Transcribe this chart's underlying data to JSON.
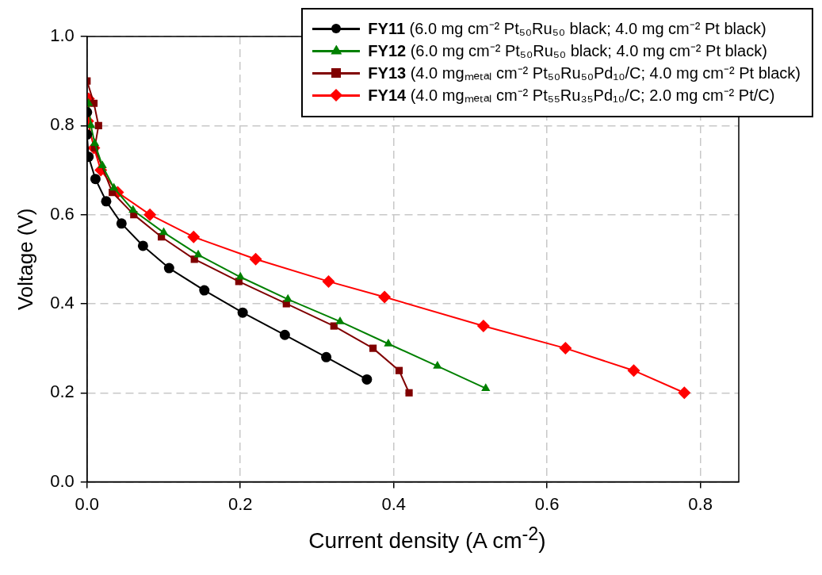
{
  "chart_data": {
    "type": "line",
    "xlabel": "Current density (A cm$^{-2}$)",
    "ylabel": "Voltage (V)",
    "xlim": [
      0,
      0.85
    ],
    "ylim": [
      0,
      1
    ],
    "xticks": [
      {
        "value": 0,
        "label": "0.0"
      },
      0.2,
      0.4,
      0.6,
      0.8
    ],
    "yticks": [
      {
        "value": 0,
        "label": "0.0"
      },
      0.2,
      0.4,
      0.6,
      0.8,
      {
        "value": 1,
        "label": "1.0"
      }
    ],
    "grid": true,
    "legend": "top right",
    "line_style": "solid",
    "series": [
      {
        "name": "FY11 (6.0 mg cm⁻² Pt₅₀Ru₅₀ black; 4.0 mg cm⁻² Pt black)",
        "color": "#000000",
        "marker": "circle",
        "x": [
          0,
          0,
          0.002,
          0.011,
          0.025,
          0.045,
          0.073,
          0.107,
          0.153,
          0.203,
          0.258,
          0.312,
          0.365
        ],
        "values": [
          0.83,
          0.78,
          0.73,
          0.68,
          0.63,
          0.58,
          0.53,
          0.48,
          0.43,
          0.38,
          0.33,
          0.28,
          0.23
        ]
      },
      {
        "name": "FY12 (6.0 mg cm⁻² Pt₅₀Ru₅₀ black; 4.0 mg cm⁻² Pt black)",
        "color": "#008000",
        "marker": "triangle",
        "x": [
          0.002,
          0.005,
          0.01,
          0.02,
          0.035,
          0.06,
          0.1,
          0.145,
          0.2,
          0.262,
          0.33,
          0.393,
          0.457,
          0.52
        ],
        "values": [
          0.85,
          0.8,
          0.76,
          0.71,
          0.66,
          0.61,
          0.56,
          0.51,
          0.46,
          0.41,
          0.36,
          0.31,
          0.26,
          0.21
        ]
      },
      {
        "name": "FY13 (4.0 mgₘₑₜₐₗ cm⁻² Pt₅₀Ru₅₀Pd₁₀/C; 4.0 mg cm⁻² Pt black)",
        "color": "#800000",
        "marker": "square",
        "x": [
          0,
          0.009,
          0.015,
          0.01,
          0.033,
          0.061,
          0.097,
          0.14,
          0.198,
          0.26,
          0.322,
          0.373,
          0.407,
          0.42
        ],
        "values": [
          0.9,
          0.85,
          0.8,
          0.75,
          0.65,
          0.6,
          0.55,
          0.5,
          0.45,
          0.4,
          0.35,
          0.3,
          0.25,
          0.2
        ]
      },
      {
        "name": "FY14 (4.0 mgₘₑₜₐₗ cm⁻² Pt₅₅Ru₃₅Pd₁₀/C; 2.0 mg cm⁻² Pt/C)",
        "color": "#ff0000",
        "marker": "diamond",
        "x": [
          0.002,
          0,
          0.001,
          0.009,
          0.018,
          0.04,
          0.082,
          0.139,
          0.22,
          0.315,
          0.388,
          0.517,
          0.624,
          0.713,
          0.779
        ],
        "values": [
          0.86,
          0.85,
          0.81,
          0.75,
          0.7,
          0.65,
          0.6,
          0.55,
          0.5,
          0.45,
          0.415,
          0.35,
          0.3,
          0.25,
          0.2
        ]
      }
    ]
  }
}
